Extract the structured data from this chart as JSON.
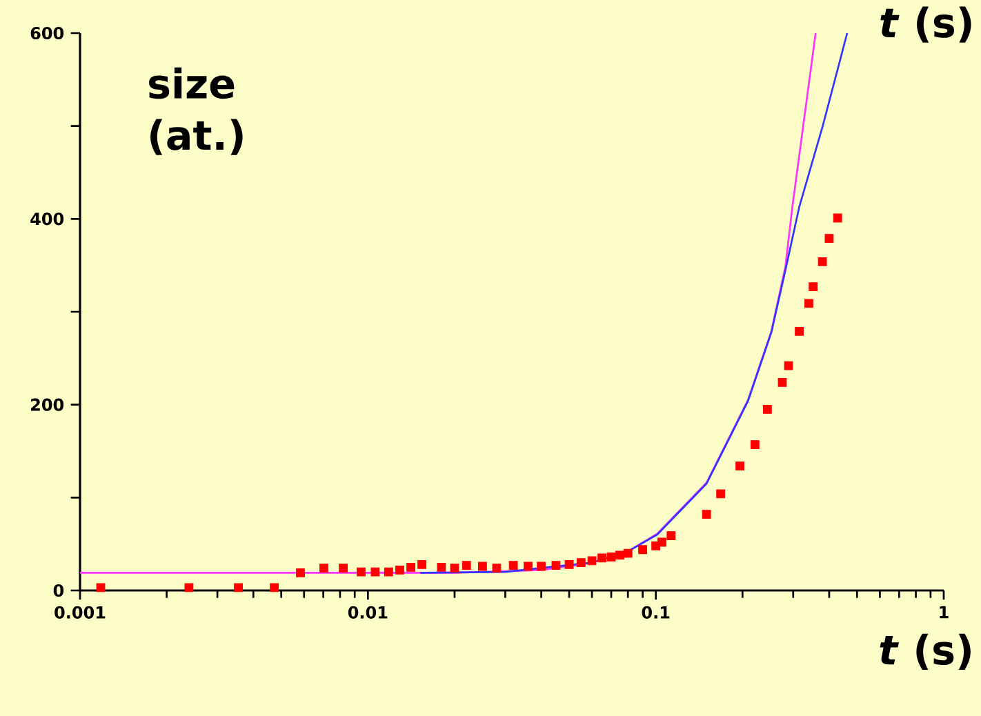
{
  "chart_data": {
    "type": "line",
    "xlabel": "*t* (s)",
    "ylabel": "size (at.)",
    "log": "x",
    "xlim": [
      0.001,
      1
    ],
    "ylim": [
      0,
      600
    ],
    "xticks": [
      0.001,
      0.01,
      0.1,
      1
    ],
    "yticks": [
      0,
      {
        "value": 100,
        "label": null
      },
      200,
      {
        "value": 300,
        "label": null
      },
      400,
      {
        "value": 500,
        "label": null
      },
      600
    ],
    "grid": false,
    "annotations": [
      "*t* (s)"
    ],
    "series": [
      {
        "color": "#ff33ff",
        "marker": "none",
        "x": [
          0.001,
          0.02,
          0.04,
          0.06,
          0.08,
          0.101,
          0.15,
          0.209,
          0.252,
          0.282,
          0.298,
          0.359
        ],
        "values": [
          19,
          19,
          22,
          30,
          42,
          61,
          116,
          205,
          279,
          349,
          413,
          600
        ]
      },
      {
        "color": "#3333ff",
        "marker": "none",
        "x": [
          0.0152,
          0.03,
          0.06,
          0.08,
          0.101,
          0.15,
          0.209,
          0.252,
          0.282,
          0.315,
          0.38,
          0.462
        ],
        "values": [
          19,
          20,
          30,
          42,
          60,
          115,
          204,
          278,
          345,
          413,
          500,
          600
        ]
      },
      {
        "type": "scatter",
        "color": "#ff0000",
        "marker": "square",
        "x": [
          0.00118,
          0.00239,
          0.00355,
          0.00473,
          0.00583,
          0.00703,
          0.00821,
          0.00947,
          0.0106,
          0.0118,
          0.0129,
          0.0141,
          0.0154,
          0.018,
          0.02,
          0.022,
          0.025,
          0.028,
          0.032,
          0.036,
          0.04,
          0.045,
          0.05,
          0.055,
          0.06,
          0.065,
          0.07,
          0.075,
          0.08,
          0.09,
          0.1,
          0.105,
          0.113,
          0.15,
          0.168,
          0.196,
          0.221,
          0.244,
          0.275,
          0.289,
          0.315,
          0.34,
          0.352,
          0.379,
          0.4,
          0.428
        ],
        "values": [
          3,
          3,
          3,
          3,
          19,
          24,
          24,
          20,
          20,
          20,
          22,
          25,
          28,
          25,
          24,
          27,
          26,
          24,
          27,
          26,
          26,
          27,
          28,
          30,
          32,
          35,
          36,
          38,
          40,
          44,
          48,
          52,
          59,
          82,
          104,
          134,
          157,
          195,
          224,
          242,
          279,
          309,
          327,
          354,
          379,
          401
        ]
      }
    ]
  }
}
